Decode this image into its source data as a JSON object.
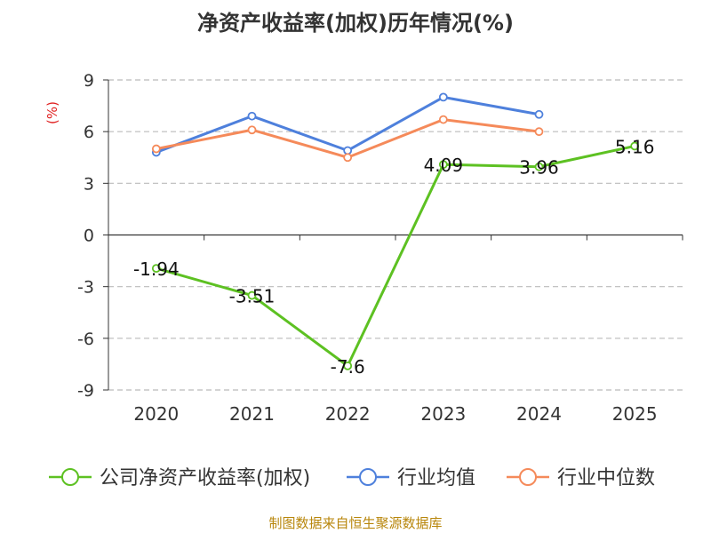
{
  "chart_data": {
    "type": "line",
    "title": "净资产收益率(加权)历年情况(%)",
    "ylabel": "(%)",
    "xlabel": "",
    "categories": [
      "2020",
      "2021",
      "2022",
      "2023",
      "2024",
      "2025"
    ],
    "ylim": [
      -9,
      9
    ],
    "yticks": [
      9,
      6,
      3,
      0,
      -3,
      -6,
      -9
    ],
    "grid": true,
    "legend_position": "bottom",
    "series": [
      {
        "name": "公司净资产收益率(加权)",
        "values": [
          -1.94,
          -3.51,
          -7.6,
          4.09,
          3.96,
          5.16
        ],
        "color": "#5dc122",
        "show_labels": true
      },
      {
        "name": "行业均值",
        "values": [
          4.8,
          6.9,
          4.9,
          8.0,
          7.0,
          null
        ],
        "color": "#4e80dc",
        "show_labels": false
      },
      {
        "name": "行业中位数",
        "values": [
          5.0,
          6.1,
          4.5,
          6.7,
          6.0,
          null
        ],
        "color": "#f58a5a",
        "show_labels": false
      }
    ]
  },
  "source": "制图数据来自恒生聚源数据库",
  "colors": {
    "axis": "#333333",
    "grid": "#bbbbbb",
    "ylabel": "#e02020"
  }
}
